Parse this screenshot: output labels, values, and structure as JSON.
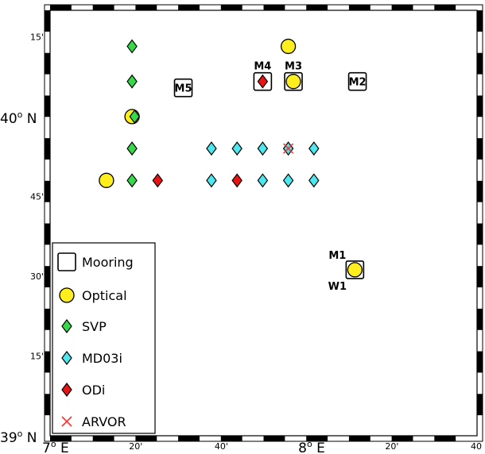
{
  "map": {
    "lat_labels": [
      {
        "text": "15'",
        "lat": 40.25
      },
      {
        "text": "40° N",
        "lat": 40.0,
        "main": "40",
        "sup": "o",
        "suffix": " N"
      },
      {
        "text": "45'",
        "lat": 39.75
      },
      {
        "text": "30'",
        "lat": 39.5
      },
      {
        "text": "15'",
        "lat": 39.25
      },
      {
        "text": "39° N",
        "lat": 39.0,
        "main": "39",
        "sup": "o",
        "suffix": " N"
      }
    ],
    "lon_labels": [
      {
        "text": "7° E",
        "lon": 7.0,
        "main": "7",
        "sup": "o",
        "suffix": " E"
      },
      {
        "text": "20'",
        "lon": 7.333
      },
      {
        "text": "40'",
        "lon": 7.667
      },
      {
        "text": "8° E",
        "lon": 8.0,
        "main": "8",
        "sup": "o",
        "suffix": " E"
      },
      {
        "text": "20'",
        "lon": 8.333
      },
      {
        "text": "40",
        "lon": 8.667
      }
    ],
    "extent": {
      "lon_min": 7.0,
      "lon_max": 8.667,
      "lat_min": 39.0,
      "lat_max": 40.333
    },
    "colors": {
      "deep": "#0a1fb4",
      "mid": "#1e7cf0",
      "shelf": "#26e6e6",
      "shallow": "#d9f23a",
      "coast": "#ffff1e",
      "land": "#342f14"
    },
    "markers": {
      "moorings": [
        {
          "label": "M5",
          "lon": 7.52,
          "lat": 40.09
        },
        {
          "label": "M4",
          "lon": 7.83,
          "lat": 40.11
        },
        {
          "label": "M3",
          "lon": 7.95,
          "lat": 40.11
        },
        {
          "label": "M2",
          "lon": 8.2,
          "lat": 40.11
        },
        {
          "label": "M1",
          "lon": 8.19,
          "lat": 39.52
        }
      ],
      "mooring_w1_label": "W1",
      "optical": [
        {
          "lon": 8.19,
          "lat": 39.52
        },
        {
          "lon": 7.95,
          "lat": 40.11
        },
        {
          "lon": 7.93,
          "lat": 40.22
        },
        {
          "lon": 7.32,
          "lat": 40.0
        },
        {
          "lon": 7.22,
          "lat": 39.8
        }
      ],
      "svp": [
        {
          "lon": 7.32,
          "lat": 40.22
        },
        {
          "lon": 7.32,
          "lat": 40.11
        },
        {
          "lon": 7.33,
          "lat": 40.0
        },
        {
          "lon": 7.32,
          "lat": 39.9
        },
        {
          "lon": 7.32,
          "lat": 39.8
        }
      ],
      "md03i": [
        {
          "lon": 7.63,
          "lat": 39.9
        },
        {
          "lon": 7.73,
          "lat": 39.9
        },
        {
          "lon": 7.83,
          "lat": 39.9
        },
        {
          "lon": 7.93,
          "lat": 39.9
        },
        {
          "lon": 8.03,
          "lat": 39.9
        },
        {
          "lon": 7.63,
          "lat": 39.8
        },
        {
          "lon": 7.83,
          "lat": 39.8
        },
        {
          "lon": 7.93,
          "lat": 39.8
        },
        {
          "lon": 8.03,
          "lat": 39.8
        }
      ],
      "odi": [
        {
          "lon": 7.42,
          "lat": 39.8
        },
        {
          "lon": 7.73,
          "lat": 39.8
        },
        {
          "lon": 7.83,
          "lat": 40.11
        }
      ],
      "argo": [
        {
          "lon": 7.93,
          "lat": 39.9
        }
      ]
    },
    "legend": {
      "items": [
        {
          "key": "mooring",
          "label": "Mooring"
        },
        {
          "key": "optical",
          "label": "Optical"
        },
        {
          "key": "svp",
          "label": "SVP"
        },
        {
          "key": "md03i",
          "label": "MD03i"
        },
        {
          "key": "odi",
          "label": "ODi"
        },
        {
          "key": "argo",
          "label": "ARVOR"
        }
      ]
    }
  }
}
